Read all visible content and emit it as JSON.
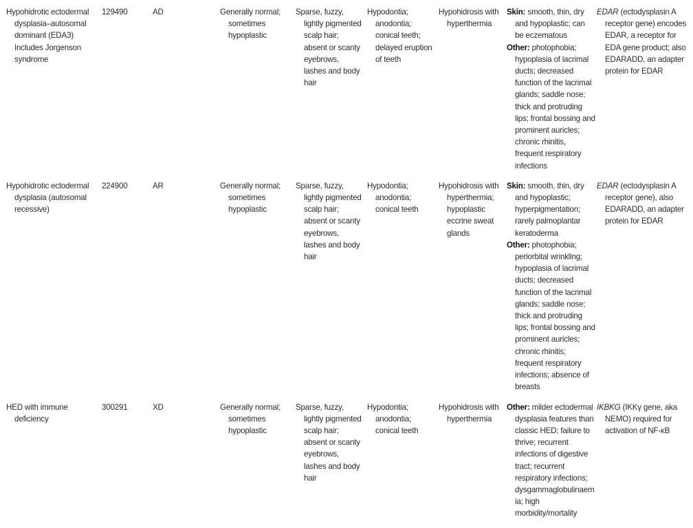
{
  "rows": [
    {
      "condition": "Hypohidrotic ectodermal dysplasia–autosomal dominant (EDA3) Includes Jorgenson syndrome",
      "omim": "129490",
      "inheritance": "AD",
      "nails": "Generally normal; sometimes hypoplastic",
      "hair": "Sparse, fuzzy, lightly pigmented scalp hair; absent or scanty eyebrows, lashes and body hair",
      "teeth": "Hypodontia; anodontia; conical teeth; delayed eruption of teeth",
      "sweat": "Hypohidrosis with hyperthermia",
      "other": [
        {
          "label": "Skin:",
          "text": "smooth, thin, dry and hypoplastic; can be eczematous"
        },
        {
          "label": "Other:",
          "text": "photophobia; hypoplasia of lacrimal ducts; decreased function of the lacrimal glands; saddle nose; thick and protruding lips; frontal bossing and prominent auricles; chronic rhinitis, frequent respiratory infections"
        }
      ],
      "gene": {
        "name": "EDAR",
        "text": "(ectodysplasin A receptor gene) encodes EDAR, a receptor for EDA gene product; also EDARADD, an adapter protein for EDAR"
      }
    },
    {
      "condition": "Hypohidrotic ectodermal dysplasia (autosomal recessive)",
      "omim": "224900",
      "inheritance": "AR",
      "nails": "Generally normal; sometimes hypoplastic",
      "hair": "Sparse, fuzzy, lightly pigmented scalp hair; absent or scanty eyebrows, lashes and body hair",
      "teeth": "Hypodontia; anodontia; conical teeth",
      "sweat": "Hypohidrosis with hyperthermia; hypoplastic eccrine sweat glands",
      "other": [
        {
          "label": "Skin:",
          "text": "smooth, thin, dry and hypoplastic; hyperpigmentation; rarely palmoplantar keratoderma"
        },
        {
          "label": "Other:",
          "text": "photophobia; periorbital wrinkling; hypoplasia of lacrimal ducts; decreased function of the lacrimal glands; saddle nose; thick and protruding lips; frontal bossing and prominent auricles; chronic rhinitis; frequent respiratory infections; absence of breasts"
        }
      ],
      "gene": {
        "name": "EDAR",
        "text": "(ectodysplasin A receptor gene), also EDARADD, an adapter protein for EDAR"
      }
    },
    {
      "condition": "HED with immune deficiency",
      "omim": "300291",
      "inheritance": "XD",
      "nails": "Generally normal; sometimes hypoplastic",
      "hair": "Sparse, fuzzy, lightly pigmented scalp hair; absent or scanty eyebrows, lashes and body hair",
      "teeth": "Hypodontia; anodontia; conical teeth",
      "sweat": "Hypohidrosis with hyperthermia",
      "other": [
        {
          "label": "Other:",
          "text": "milder ectodermal dysplasia features than classic HED; failure to thrive; recurrent infections of digestive tract; recurrent respiratory infections; dysgammaglobulinaemia; high morbidity/mortality"
        }
      ],
      "gene": {
        "name": "IKBKG",
        "text": "(IKKγ gene, aka NEMO) required for activation of NF-κB"
      }
    }
  ]
}
